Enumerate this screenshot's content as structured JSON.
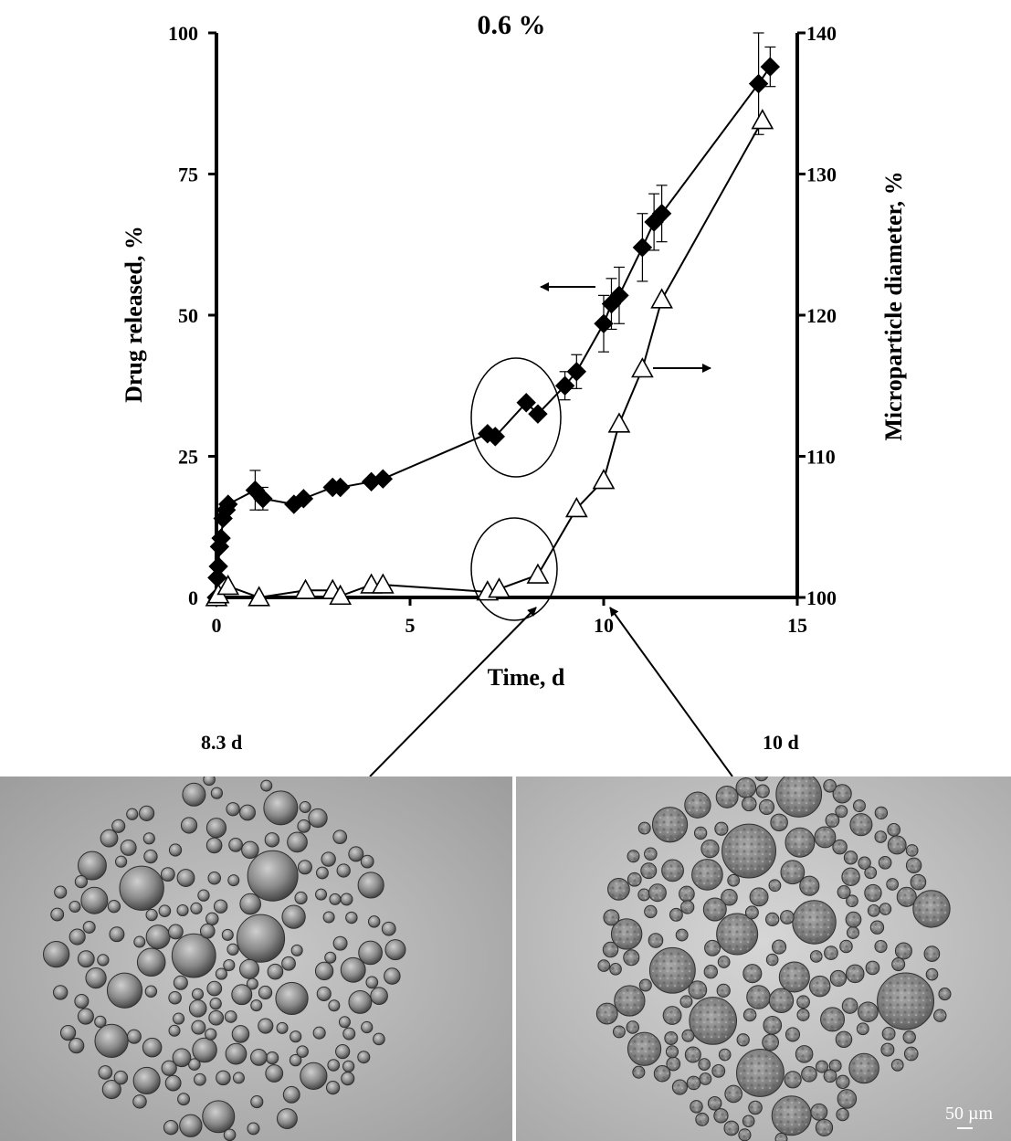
{
  "chart_data": {
    "type": "line",
    "title": "0.6 %",
    "xlabel": "Time, d",
    "ylabel": "Drug released, %",
    "y2label": "Microparticle diameter, %",
    "xlim": [
      0,
      15
    ],
    "ylim": [
      0,
      100
    ],
    "y2lim": [
      100,
      140
    ],
    "x_ticks": [
      0,
      5,
      10,
      15
    ],
    "y_ticks": [
      0,
      25,
      50,
      75,
      100
    ],
    "y2_ticks": [
      100,
      110,
      120,
      130,
      140
    ],
    "grid": false,
    "legend": "none",
    "series": [
      {
        "axis": "left",
        "marker": "filled-diamond",
        "color": "#000000",
        "x": [
          0,
          0.02,
          0.05,
          0.08,
          0.12,
          0.17,
          0.25,
          0.3,
          1.0,
          1.2,
          2.0,
          2.25,
          3.0,
          3.2,
          4.0,
          4.3,
          7.0,
          7.2,
          8.0,
          8.3,
          9.0,
          9.3,
          10.0,
          10.2,
          10.4,
          11.0,
          11.3,
          11.5,
          14.0,
          14.3
        ],
        "values": [
          0,
          3.5,
          5.5,
          9,
          10.5,
          14,
          15.5,
          16.5,
          19,
          17.5,
          16.5,
          17.5,
          19.5,
          19.5,
          20.5,
          21,
          29,
          28.5,
          34.5,
          32.5,
          37.5,
          40,
          48.5,
          52,
          53.5,
          62,
          66.5,
          68,
          91,
          94
        ],
        "error": [
          0,
          0,
          0,
          0,
          0,
          0,
          0,
          0,
          3.5,
          2,
          0,
          0,
          0,
          0,
          0,
          0,
          0,
          0,
          0,
          0,
          2.5,
          3,
          5,
          4.5,
          5,
          6,
          5,
          5,
          9,
          3.5
        ]
      },
      {
        "axis": "right",
        "marker": "open-triangle",
        "color": "#000000",
        "x": [
          0,
          0.05,
          0.3,
          1.1,
          2.3,
          3.0,
          3.2,
          4.0,
          4.3,
          7.0,
          7.3,
          8.3,
          9.3,
          10.0,
          10.4,
          11.0,
          11.5,
          14.1
        ],
        "values": [
          100,
          100.2,
          100.8,
          100,
          100.5,
          100.5,
          100.1,
          100.9,
          100.9,
          100.4,
          100.6,
          101.6,
          106.3,
          108.3,
          112.3,
          116.2,
          121.1,
          133.8
        ]
      }
    ],
    "annotations": {
      "left_arrow": "←",
      "right_arrow": "→"
    }
  },
  "images": {
    "left_label": "8.3 d",
    "right_label": "10 d",
    "scale_bar": "50 µm"
  }
}
